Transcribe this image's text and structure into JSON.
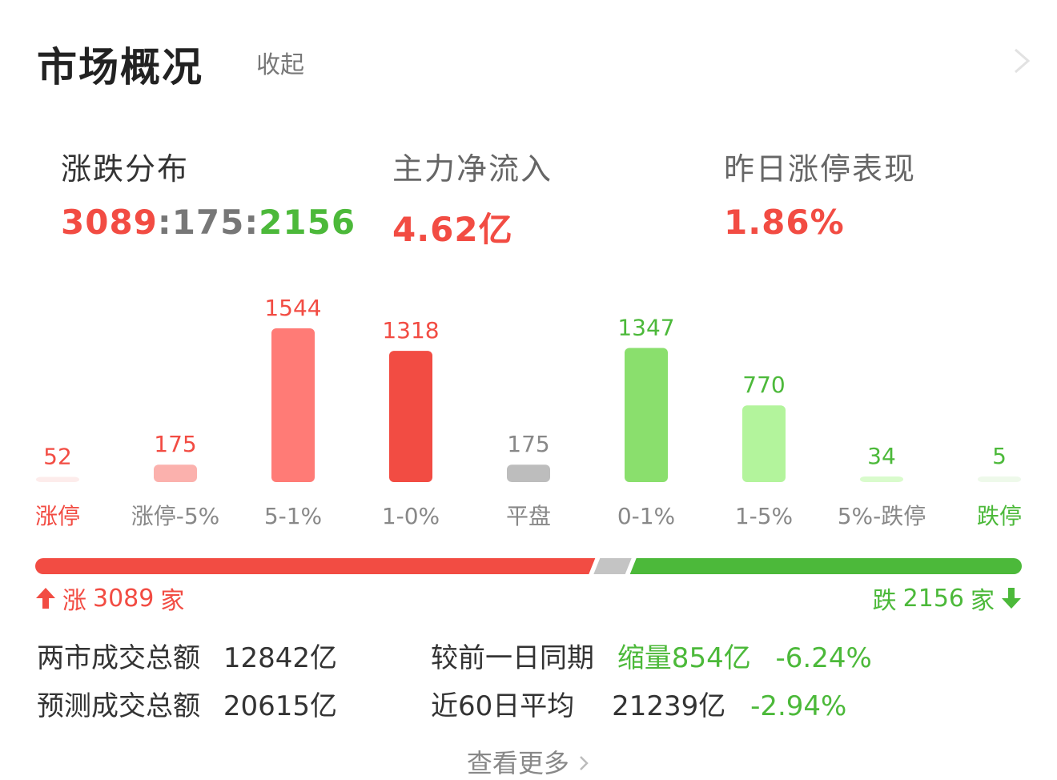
{
  "header": {
    "title": "市场概况",
    "collapse_label": "收起"
  },
  "stats": {
    "distribution": {
      "label": "涨跌分布",
      "up": "3089",
      "sep1": ":",
      "flat": "175",
      "sep2": ":",
      "down": "2156"
    },
    "net_inflow": {
      "label": "主力净流入",
      "value": "4.62亿"
    },
    "yesterday_limit_up": {
      "label": "昨日涨停表现",
      "value": "1.86%"
    }
  },
  "chart_data": {
    "type": "bar",
    "categories": [
      "涨停",
      "涨停-5%",
      "5-1%",
      "1-0%",
      "平盘",
      "0-1%",
      "1-5%",
      "5%-跌停",
      "跌停"
    ],
    "values": [
      52,
      175,
      1544,
      1318,
      175,
      1347,
      770,
      34,
      5
    ],
    "value_labels": [
      "52",
      "175",
      "1544",
      "1318",
      "175",
      "1347",
      "770",
      "34",
      "5"
    ],
    "bar_colors": [
      "#fdeceb",
      "#fbb1ad",
      "#ff7b76",
      "#f24c43",
      "#bdbdbd",
      "#8adf6d",
      "#b3f49c",
      "#d9fbcc",
      "#eef9ea"
    ],
    "value_label_colors": [
      "#f24c43",
      "#f24c43",
      "#f24c43",
      "#f24c43",
      "#888888",
      "#4cb93a",
      "#4cb93a",
      "#4cb93a",
      "#4cb93a"
    ],
    "category_label_colors": [
      "#f24c43",
      "#888888",
      "#888888",
      "#888888",
      "#888888",
      "#888888",
      "#888888",
      "#888888",
      "#4cb93a"
    ],
    "ylim": [
      0,
      1544
    ]
  },
  "split_bar": {
    "up": 3089,
    "flat": 175,
    "down": 2156,
    "up_color": "#f24c43",
    "flat_color": "#c4c4c4",
    "down_color": "#4cb93a"
  },
  "rise": {
    "label": "涨",
    "count": "3089",
    "unit": "家"
  },
  "fall": {
    "label": "跌",
    "count": "2156",
    "unit": "家"
  },
  "turnover": {
    "row1": {
      "label": "两市成交总额",
      "value": "12842亿",
      "compare_label": "较前一日同期",
      "compare_value": "缩量854亿",
      "compare_pct": "-6.24%"
    },
    "row2": {
      "label": "预测成交总额",
      "value": "20615亿",
      "compare_label": "近60日平均",
      "compare_value": "21239亿",
      "compare_pct": "-2.94%"
    }
  },
  "footer": {
    "more_label": "查看更多"
  }
}
